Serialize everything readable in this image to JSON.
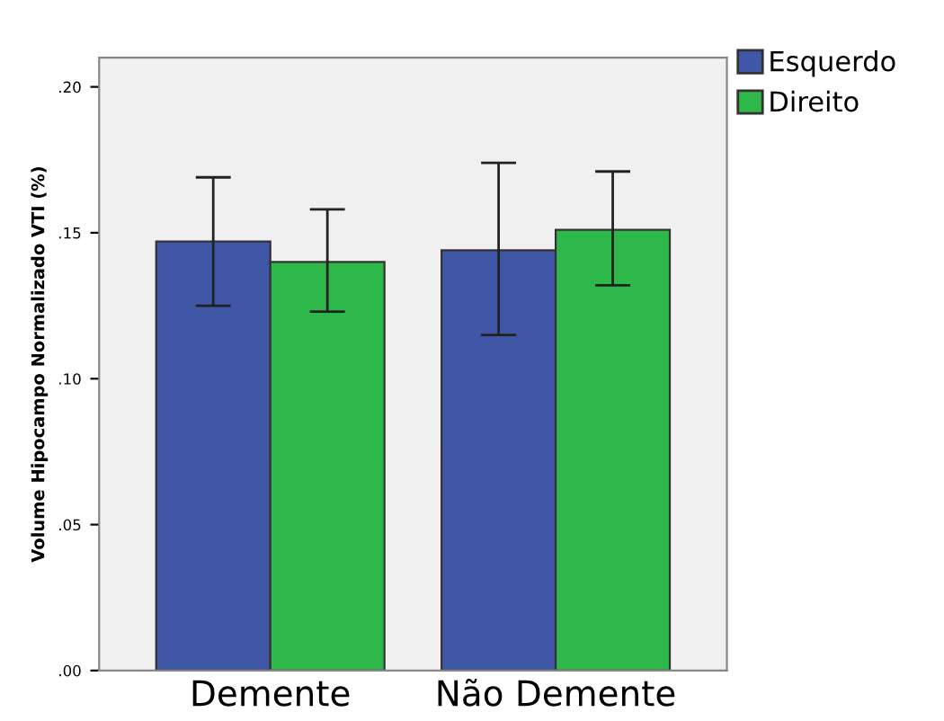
{
  "chart_data": {
    "type": "bar",
    "ylabel": "Volume Hipocampo Normalizado VTI (%)",
    "categories": [
      "Demente",
      "Não Demente"
    ],
    "series": [
      {
        "name": "Esquerdo",
        "color": "#3f57a6",
        "values": [
          0.147,
          0.144
        ],
        "errors": [
          [
            0.125,
            0.169
          ],
          [
            0.115,
            0.174
          ]
        ]
      },
      {
        "name": "Direito",
        "color": "#2fb84a",
        "values": [
          0.14,
          0.151
        ],
        "errors": [
          [
            0.123,
            0.158
          ],
          [
            0.132,
            0.171
          ]
        ]
      }
    ],
    "ylim": [
      0,
      0.21
    ],
    "yticks": [
      {
        "value": 0,
        "label": ".00"
      },
      {
        "value": 0.05,
        "label": ".05"
      },
      {
        "value": 0.1,
        "label": ".10"
      },
      {
        "value": 0.15,
        "label": ".15"
      },
      {
        "value": 0.2,
        "label": ".20"
      }
    ],
    "grid": false,
    "legend": "top right"
  }
}
